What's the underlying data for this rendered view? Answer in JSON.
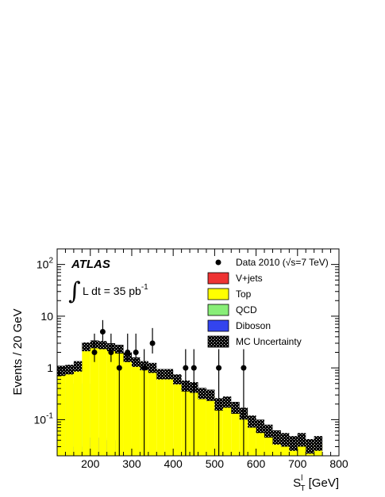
{
  "chart_data": {
    "type": "bar",
    "stacked": true,
    "log_y": true,
    "xlabel_main": "S",
    "xlabel_sup": "l",
    "xlabel_sub": "T",
    "xlabel_unit": " [GeV]",
    "ylabel": "Events / 20 GeV",
    "xlim": [
      120,
      800
    ],
    "ylim": [
      0.02,
      200
    ],
    "x_ticks": [
      200,
      300,
      400,
      500,
      600,
      700,
      800
    ],
    "y_ticks": [
      {
        "value": 0.1,
        "base": "10",
        "exp": "-1"
      },
      {
        "value": 1,
        "base": "1",
        "exp": ""
      },
      {
        "value": 10,
        "base": "10",
        "exp": ""
      },
      {
        "value": 100,
        "base": "10",
        "exp": "2"
      }
    ],
    "experiment": "ATLAS",
    "lumi_text": "L dt = 35 pb",
    "lumi_sup": "-1",
    "integral_symbol": "∫",
    "bins": [
      {
        "x": [
          120,
          140
        ],
        "diboson": 0,
        "qcd": 0,
        "top": 0.9,
        "vjets": 0,
        "unc": [
          0.7,
          1.1
        ]
      },
      {
        "x": [
          140,
          160
        ],
        "diboson": 0,
        "qcd": 0.5,
        "top": 0.95,
        "vjets": 0,
        "unc": [
          0.75,
          1.15
        ]
      },
      {
        "x": [
          160,
          180
        ],
        "diboson": 0.03,
        "qcd": 0,
        "top": 1.1,
        "vjets": 0,
        "unc": [
          0.85,
          1.35
        ]
      },
      {
        "x": [
          180,
          200
        ],
        "diboson": 0,
        "qcd": 0.5,
        "top": 2.6,
        "vjets": 0,
        "unc": [
          2.1,
          3.1
        ]
      },
      {
        "x": [
          200,
          220
        ],
        "diboson": 0.045,
        "qcd": 0,
        "top": 2.9,
        "vjets": 0,
        "unc": [
          2.4,
          3.4
        ]
      },
      {
        "x": [
          220,
          240
        ],
        "diboson": 0.045,
        "qcd": 0,
        "top": 2.8,
        "vjets": 0,
        "unc": [
          2.3,
          3.3
        ]
      },
      {
        "x": [
          240,
          260
        ],
        "diboson": 0.04,
        "qcd": 0,
        "top": 2.5,
        "vjets": 0,
        "unc": [
          2.1,
          3.0
        ]
      },
      {
        "x": [
          260,
          280
        ],
        "diboson": 0.04,
        "qcd": 0,
        "top": 2.3,
        "vjets": 0,
        "unc": [
          1.9,
          2.8
        ]
      },
      {
        "x": [
          280,
          300
        ],
        "diboson": 0,
        "qcd": 0,
        "top": 1.6,
        "vjets": 0,
        "unc": [
          1.3,
          2.0
        ]
      },
      {
        "x": [
          300,
          320
        ],
        "diboson": 0,
        "qcd": 0,
        "top": 1.3,
        "vjets": 0,
        "unc": [
          1.05,
          1.6
        ]
      },
      {
        "x": [
          320,
          340
        ],
        "diboson": 0,
        "qcd": 0,
        "top": 1.1,
        "vjets": 0,
        "unc": [
          0.9,
          1.35
        ]
      },
      {
        "x": [
          340,
          360
        ],
        "diboson": 0,
        "qcd": 0,
        "top": 1.0,
        "vjets": 0,
        "unc": [
          0.8,
          1.25
        ]
      },
      {
        "x": [
          360,
          380
        ],
        "diboson": 0,
        "qcd": 0,
        "top": 0.75,
        "vjets": 0,
        "unc": [
          0.6,
          0.95
        ]
      },
      {
        "x": [
          380,
          400
        ],
        "diboson": 0,
        "qcd": 0,
        "top": 0.75,
        "vjets": 0,
        "unc": [
          0.6,
          0.95
        ]
      },
      {
        "x": [
          400,
          420
        ],
        "diboson": 0,
        "qcd": 0,
        "top": 0.6,
        "vjets": 0,
        "unc": [
          0.48,
          0.75
        ]
      },
      {
        "x": [
          420,
          440
        ],
        "diboson": 0,
        "qcd": 0,
        "top": 0.45,
        "vjets": 0,
        "unc": [
          0.35,
          0.57
        ]
      },
      {
        "x": [
          440,
          460
        ],
        "diboson": 0,
        "qcd": 0,
        "top": 0.42,
        "vjets": 0,
        "unc": [
          0.33,
          0.53
        ]
      },
      {
        "x": [
          460,
          480
        ],
        "diboson": 0,
        "qcd": 0,
        "top": 0.32,
        "vjets": 0,
        "unc": [
          0.25,
          0.41
        ]
      },
      {
        "x": [
          480,
          500
        ],
        "diboson": 0,
        "qcd": 0,
        "top": 0.3,
        "vjets": 0,
        "unc": [
          0.23,
          0.38
        ]
      },
      {
        "x": [
          500,
          520
        ],
        "diboson": 0,
        "qcd": 0,
        "top": 0.2,
        "vjets": 0,
        "unc": [
          0.15,
          0.26
        ]
      },
      {
        "x": [
          520,
          540
        ],
        "diboson": 0,
        "qcd": 0,
        "top": 0.21,
        "vjets": 0.02,
        "unc": [
          0.17,
          0.28
        ]
      },
      {
        "x": [
          540,
          560
        ],
        "diboson": 0,
        "qcd": 0,
        "top": 0.17,
        "vjets": 0,
        "unc": [
          0.13,
          0.22
        ]
      },
      {
        "x": [
          560,
          580
        ],
        "diboson": 0,
        "qcd": 0,
        "top": 0.13,
        "vjets": 0,
        "unc": [
          0.1,
          0.17
        ]
      },
      {
        "x": [
          580,
          600
        ],
        "diboson": 0,
        "qcd": 0,
        "top": 0.09,
        "vjets": 0,
        "unc": [
          0.07,
          0.12
        ]
      },
      {
        "x": [
          600,
          620
        ],
        "diboson": 0,
        "qcd": 0,
        "top": 0.075,
        "vjets": 0,
        "unc": [
          0.055,
          0.1
        ]
      },
      {
        "x": [
          620,
          640
        ],
        "diboson": 0,
        "qcd": 0,
        "top": 0.06,
        "vjets": 0,
        "unc": [
          0.045,
          0.08
        ]
      },
      {
        "x": [
          640,
          660
        ],
        "diboson": 0,
        "qcd": 0,
        "top": 0.045,
        "vjets": 0,
        "unc": [
          0.033,
          0.062
        ]
      },
      {
        "x": [
          660,
          680
        ],
        "diboson": 0,
        "qcd": 0,
        "top": 0.04,
        "vjets": 0,
        "unc": [
          0.03,
          0.055
        ]
      },
      {
        "x": [
          680,
          700
        ],
        "diboson": 0,
        "qcd": 0,
        "top": 0.035,
        "vjets": 0,
        "unc": [
          0.025,
          0.048
        ]
      },
      {
        "x": [
          700,
          720
        ],
        "diboson": 0,
        "qcd": 0,
        "top": 0.04,
        "vjets": 0,
        "unc": [
          0.03,
          0.055
        ]
      },
      {
        "x": [
          720,
          740
        ],
        "diboson": 0,
        "qcd": 0,
        "top": 0.03,
        "vjets": 0,
        "unc": [
          0.022,
          0.042
        ]
      },
      {
        "x": [
          740,
          760
        ],
        "diboson": 0,
        "qcd": 0,
        "top": 0.035,
        "vjets": 0,
        "unc": [
          0.025,
          0.048
        ]
      }
    ],
    "data_points": [
      {
        "x": 210,
        "y": 2,
        "err": [
          1.3,
          4.6
        ]
      },
      {
        "x": 230,
        "y": 5,
        "err": [
          3.1,
          8.4
        ]
      },
      {
        "x": 250,
        "y": 2,
        "err": [
          1.3,
          4.6
        ]
      },
      {
        "x": 270,
        "y": 1,
        "err": [
          0.01,
          2.3
        ]
      },
      {
        "x": 290,
        "y": 2,
        "err": [
          1.3,
          4.6
        ]
      },
      {
        "x": 310,
        "y": 2,
        "err": [
          1.3,
          4.6
        ]
      },
      {
        "x": 330,
        "y": 1,
        "err": [
          0.01,
          2.3
        ]
      },
      {
        "x": 350,
        "y": 3,
        "err": [
          1.9,
          5.9
        ]
      },
      {
        "x": 430,
        "y": 1,
        "err": [
          0.01,
          2.3
        ]
      },
      {
        "x": 450,
        "y": 1,
        "err": [
          0.01,
          2.3
        ]
      },
      {
        "x": 510,
        "y": 1,
        "err": [
          0.01,
          2.3
        ]
      },
      {
        "x": 570,
        "y": 1,
        "err": [
          0.01,
          2.3
        ]
      }
    ],
    "legend": [
      {
        "key": "data",
        "label": "Data 2010 (",
        "sqrt": "√",
        "label_tail": "s=7 TeV)"
      },
      {
        "key": "vjets",
        "label": "V+jets",
        "color": "#ee3333"
      },
      {
        "key": "top",
        "label": "Top",
        "color": "#ffff00"
      },
      {
        "key": "qcd",
        "label": "QCD",
        "color": "#88ee77"
      },
      {
        "key": "diboson",
        "label": "Diboson",
        "color": "#3344ee"
      },
      {
        "key": "unc",
        "label": "MC Uncertainty",
        "color": "#000000"
      }
    ],
    "colors": {
      "top": "#ffff00",
      "qcd": "#88ee77",
      "diboson": "#3344ee",
      "vjets": "#ee3333",
      "data": "#000000"
    }
  }
}
